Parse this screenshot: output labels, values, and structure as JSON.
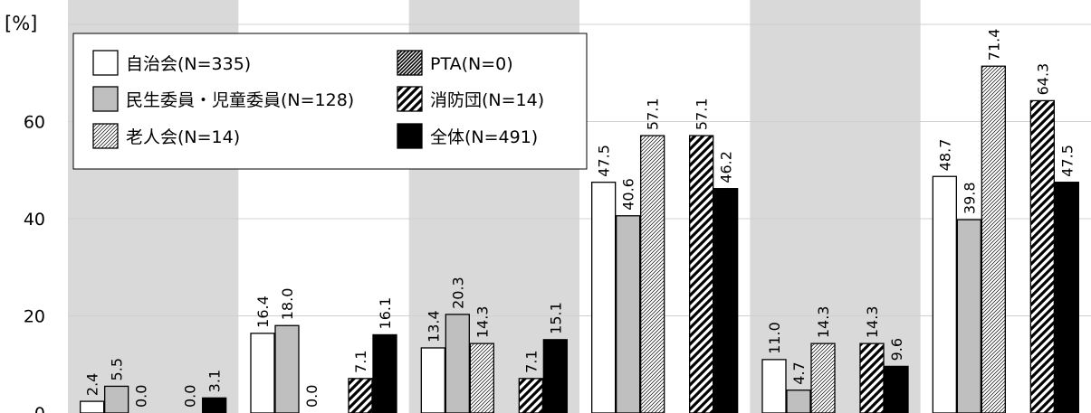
{
  "chart_data": {
    "type": "bar",
    "y_unit_label": "[%]",
    "ylim": [
      0,
      80
    ],
    "yticks": [
      0,
      20,
      40,
      60
    ],
    "grid": true,
    "legend_position": "top-left",
    "num_categories": 6,
    "series": [
      {
        "name": "自治会(N=335)",
        "pattern": "white",
        "values": [
          2.4,
          16.4,
          13.4,
          47.5,
          11.0,
          48.7
        ]
      },
      {
        "name": "民生委員・児童委員(N=128)",
        "pattern": "gray",
        "values": [
          5.5,
          18.0,
          20.3,
          40.6,
          4.7,
          39.8
        ]
      },
      {
        "name": "老人会(N=14)",
        "pattern": "fine-hatch",
        "values": [
          0.0,
          0.0,
          14.3,
          57.1,
          14.3,
          71.4
        ]
      },
      {
        "name": "PTA(N=0)",
        "pattern": "dense-hatch",
        "values": [
          null,
          null,
          null,
          null,
          null,
          null
        ]
      },
      {
        "name": "消防団(N=14)",
        "pattern": "bold-hatch",
        "values": [
          0.0,
          7.1,
          7.1,
          57.1,
          14.3,
          64.3
        ]
      },
      {
        "name": "全体(N=491)",
        "pattern": "black",
        "values": [
          3.1,
          16.1,
          15.1,
          46.2,
          9.6,
          47.5
        ]
      }
    ],
    "colors": {
      "gray_fill": "#bfbfbf",
      "band_fill": "#d9d9d9",
      "black_fill": "#000000",
      "grid": "#d0d0d0"
    }
  }
}
